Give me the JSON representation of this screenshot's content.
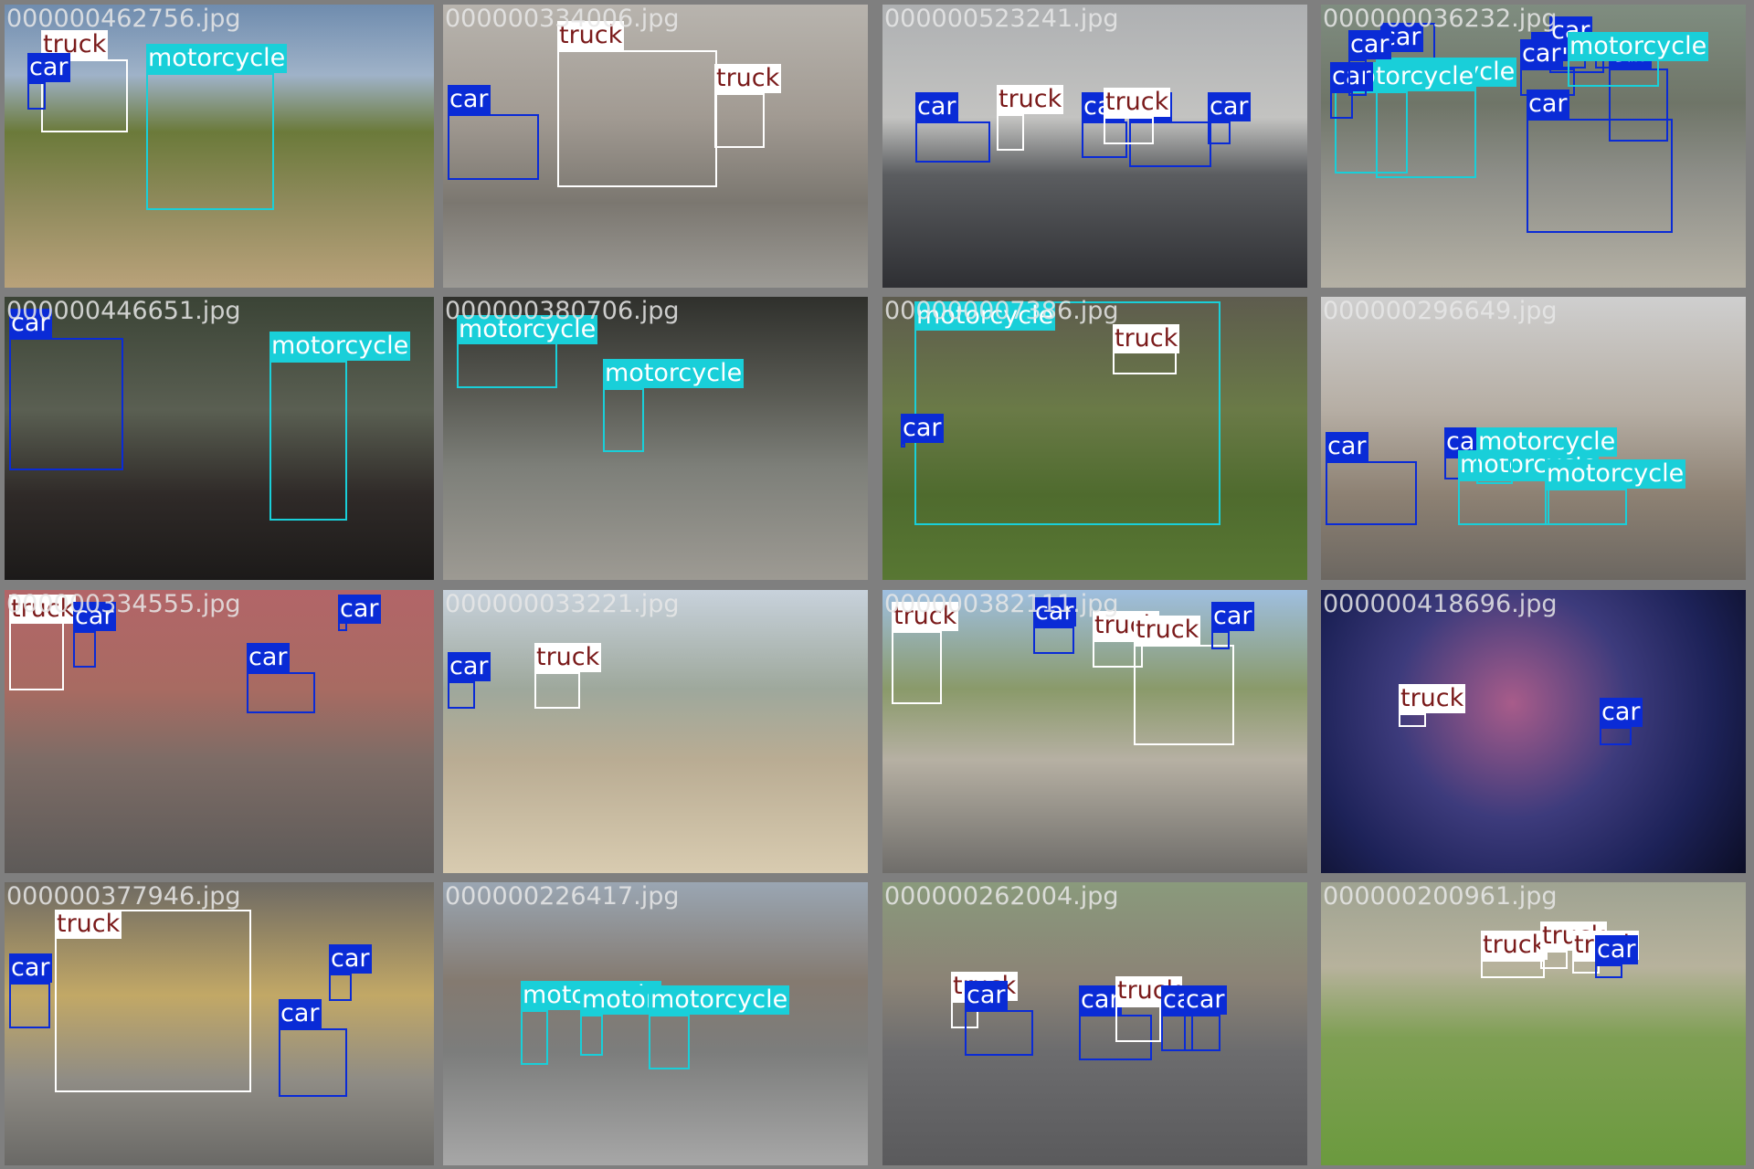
{
  "colors": {
    "car": "#0a2bd6",
    "truck": "#ffffff",
    "motorcycle": "#19cfd9",
    "grid_gap": "#7f7f7f"
  },
  "images": [
    {
      "file": "000000462756.jpg",
      "labels": [
        "truck",
        "motorcycle",
        "car"
      ]
    },
    {
      "file": "000000334006.jpg",
      "labels": [
        "truck",
        "truck",
        "car"
      ]
    },
    {
      "file": "000000523241.jpg",
      "labels": [
        "truck",
        "car",
        "car",
        "car",
        "car",
        "truck"
      ]
    },
    {
      "file": "000000036232.jpg",
      "labels": [
        "car",
        "motorcycle",
        "motorcycle",
        "car",
        "car",
        "car",
        "car",
        "car",
        "car",
        "car",
        "car",
        "motorcycle"
      ]
    },
    {
      "file": "000000446651.jpg",
      "labels": [
        "car",
        "motorcycle"
      ]
    },
    {
      "file": "000000380706.jpg",
      "labels": [
        "motorcycle",
        "motorcycle"
      ]
    },
    {
      "file": "000000007386.jpg",
      "labels": [
        "motorcycle",
        "truck",
        "car"
      ]
    },
    {
      "file": "000000296649.jpg",
      "labels": [
        "car",
        "car",
        "motorcycle",
        "motorcycle",
        "motorcycle"
      ]
    },
    {
      "file": "000000334555.jpg",
      "labels": [
        "truck",
        "car",
        "car",
        "car"
      ]
    },
    {
      "file": "000000033221.jpg",
      "labels": [
        "car",
        "truck"
      ]
    },
    {
      "file": "000000382111.jpg",
      "labels": [
        "truck",
        "car",
        "truck",
        "truck",
        "car"
      ]
    },
    {
      "file": "000000418696.jpg",
      "labels": [
        "truck",
        "car"
      ]
    },
    {
      "file": "000000377946.jpg",
      "labels": [
        "truck",
        "car",
        "car",
        "car"
      ]
    },
    {
      "file": "000000226417.jpg",
      "labels": [
        "motorcycle",
        "motorcycle",
        "motorcycle"
      ]
    },
    {
      "file": "000000262004.jpg",
      "labels": [
        "truck",
        "car",
        "car",
        "truck",
        "car",
        "car"
      ]
    },
    {
      "file": "000000200961.jpg",
      "labels": [
        "truck",
        "truck",
        "truck",
        "car"
      ]
    }
  ]
}
